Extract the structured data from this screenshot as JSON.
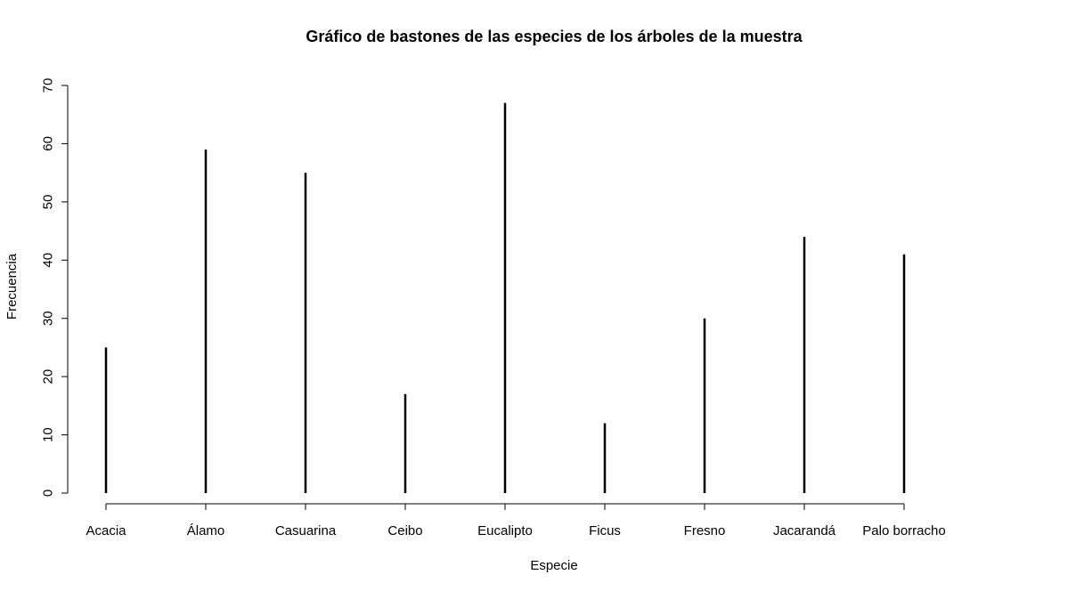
{
  "chart_data": {
    "type": "bar",
    "style": "stick",
    "title": "Gráfico de bastones de las especies de los árboles de la muestra",
    "xlabel": "Especie",
    "ylabel": "Frecuencia",
    "categories": [
      "Acacia",
      "Álamo",
      "Casuarina",
      "Ceibo",
      "Eucalipto",
      "Ficus",
      "Fresno",
      "Jacarandá",
      "Palo borracho"
    ],
    "values": [
      25,
      59,
      55,
      17,
      67,
      12,
      30,
      44,
      41
    ],
    "ylim": [
      0,
      70
    ],
    "yticks": [
      "0",
      "10",
      "20",
      "30",
      "40",
      "50",
      "60",
      "70"
    ],
    "grid": false,
    "colors": {
      "bars": "#000000",
      "axes": "#000000",
      "background": "#ffffff"
    }
  }
}
